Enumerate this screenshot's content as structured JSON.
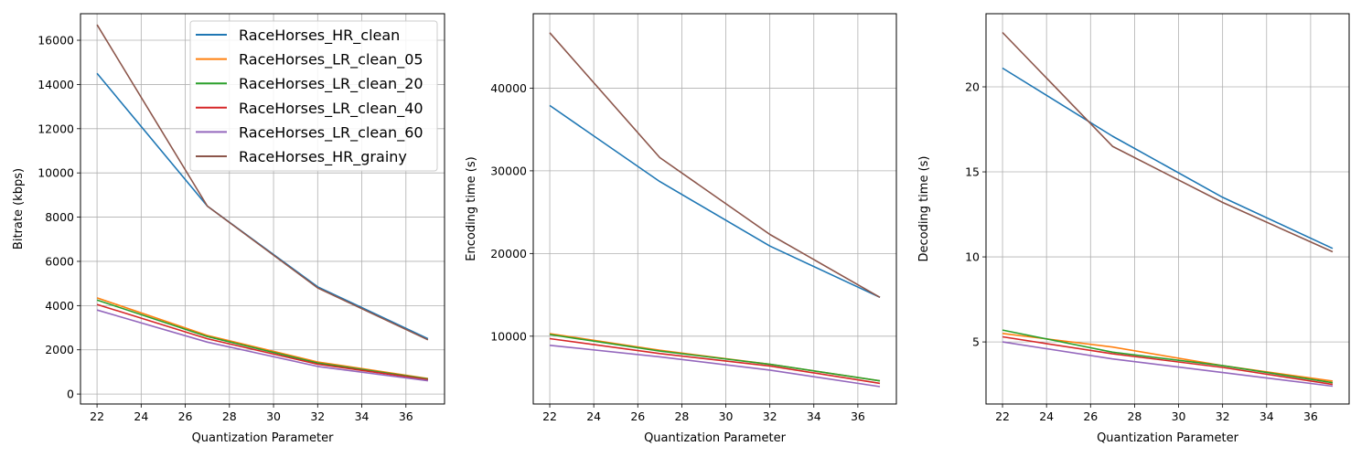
{
  "colors": {
    "RaceHorses_HR_clean": "#1f77b4",
    "RaceHorses_LR_clean_05": "#ff7f0e",
    "RaceHorses_LR_clean_20": "#2ca02c",
    "RaceHorses_LR_clean_40": "#d62728",
    "RaceHorses_LR_clean_60": "#9467bd",
    "RaceHorses_HR_grainy": "#8c564b"
  },
  "chart_data": [
    {
      "type": "line",
      "xlabel": "Quantization Parameter",
      "ylabel": "Bitrate (kbps)",
      "xlim": [
        21.25,
        37.75
      ],
      "ylim": [
        -450,
        17200
      ],
      "xticks": [
        22,
        24,
        26,
        28,
        30,
        32,
        34,
        36
      ],
      "yticks": [
        0,
        2000,
        4000,
        6000,
        8000,
        10000,
        12000,
        14000,
        16000
      ],
      "grid": true,
      "legend": "top-right",
      "x": [
        22,
        27,
        32,
        37
      ],
      "series": [
        {
          "name": "RaceHorses_HR_clean",
          "values": [
            14500,
            8500,
            4850,
            2500
          ]
        },
        {
          "name": "RaceHorses_LR_clean_05",
          "values": [
            4350,
            2650,
            1450,
            700
          ]
        },
        {
          "name": "RaceHorses_LR_clean_20",
          "values": [
            4250,
            2600,
            1400,
            680
          ]
        },
        {
          "name": "RaceHorses_LR_clean_40",
          "values": [
            4050,
            2500,
            1350,
            650
          ]
        },
        {
          "name": "RaceHorses_LR_clean_60",
          "values": [
            3800,
            2350,
            1250,
            600
          ]
        },
        {
          "name": "RaceHorses_HR_grainy",
          "values": [
            16700,
            8500,
            4800,
            2450
          ]
        }
      ]
    },
    {
      "type": "line",
      "xlabel": "Quantization Parameter",
      "ylabel": "Encoding time (s)",
      "xlim": [
        21.25,
        37.75
      ],
      "ylim": [
        1800,
        49000
      ],
      "xticks": [
        22,
        24,
        26,
        28,
        30,
        32,
        34,
        36
      ],
      "yticks": [
        10000,
        20000,
        30000,
        40000
      ],
      "grid": true,
      "x": [
        22,
        27,
        32,
        37
      ],
      "series": [
        {
          "name": "RaceHorses_HR_clean",
          "values": [
            37900,
            28700,
            20900,
            14700
          ]
        },
        {
          "name": "RaceHorses_LR_clean_05",
          "values": [
            10300,
            8300,
            6600,
            4600
          ]
        },
        {
          "name": "RaceHorses_LR_clean_20",
          "values": [
            10200,
            8200,
            6600,
            4600
          ]
        },
        {
          "name": "RaceHorses_LR_clean_40",
          "values": [
            9700,
            7900,
            6400,
            4300
          ]
        },
        {
          "name": "RaceHorses_LR_clean_60",
          "values": [
            8900,
            7500,
            5900,
            3900
          ]
        },
        {
          "name": "RaceHorses_HR_grainy",
          "values": [
            46700,
            31600,
            22300,
            14700
          ]
        }
      ]
    },
    {
      "type": "line",
      "xlabel": "Quantization Parameter",
      "ylabel": "Decoding time (s)",
      "xlim": [
        21.25,
        37.75
      ],
      "ylim": [
        1.35,
        24.3
      ],
      "xticks": [
        22,
        24,
        26,
        28,
        30,
        32,
        34,
        36
      ],
      "yticks": [
        5,
        10,
        15,
        20
      ],
      "grid": true,
      "x": [
        22,
        27,
        32,
        37
      ],
      "series": [
        {
          "name": "RaceHorses_HR_clean",
          "values": [
            21.1,
            17.1,
            13.5,
            10.5
          ]
        },
        {
          "name": "RaceHorses_LR_clean_05",
          "values": [
            5.5,
            4.7,
            3.6,
            2.7
          ]
        },
        {
          "name": "RaceHorses_LR_clean_20",
          "values": [
            5.7,
            4.4,
            3.6,
            2.6
          ]
        },
        {
          "name": "RaceHorses_LR_clean_40",
          "values": [
            5.3,
            4.3,
            3.5,
            2.5
          ]
        },
        {
          "name": "RaceHorses_LR_clean_60",
          "values": [
            5.0,
            4.0,
            3.2,
            2.4
          ]
        },
        {
          "name": "RaceHorses_HR_grainy",
          "values": [
            23.2,
            16.5,
            13.2,
            10.3
          ]
        }
      ]
    }
  ]
}
